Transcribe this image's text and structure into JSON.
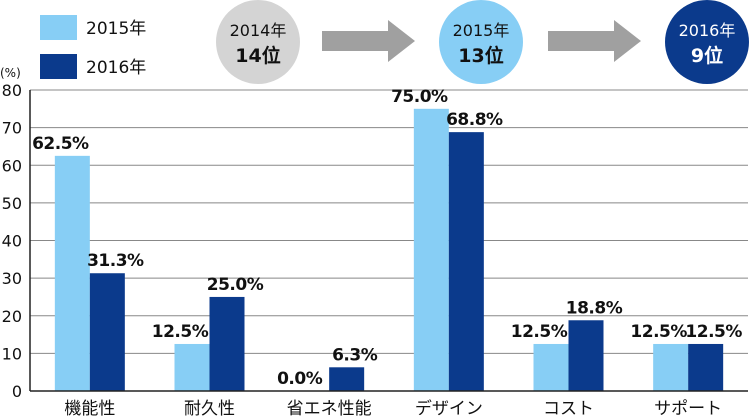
{
  "chart_data": {
    "type": "bar",
    "categories": [
      "機能性",
      "耐久性",
      "省エネ性能",
      "デザイン",
      "コスト",
      "サポート"
    ],
    "series": [
      {
        "name": "2015年",
        "values": [
          62.5,
          12.5,
          0.0,
          75.0,
          12.5,
          12.5
        ],
        "color": "#87CEF5"
      },
      {
        "name": "2016年",
        "values": [
          31.3,
          25.0,
          6.3,
          68.8,
          18.8,
          12.5
        ],
        "color": "#0B3A8C"
      }
    ],
    "value_labels": {
      "2015年": [
        "62.5%",
        "12.5%",
        "0.0%",
        "75.0%",
        "12.5%",
        "12.5%"
      ],
      "2016年": [
        "31.3%",
        "25.0%",
        "6.3%",
        "68.8%",
        "18.8%",
        "12.5%"
      ]
    },
    "yticks": [
      "0",
      "10",
      "20",
      "30",
      "40",
      "50",
      "60",
      "70",
      "80"
    ],
    "ylim": [
      0,
      80
    ],
    "ylabel": "(%)",
    "grid": true,
    "legend": "top-left"
  },
  "ranking": [
    {
      "year": "2014年",
      "rank": "14位",
      "fill": "#D4D4D4",
      "text_color": "#111111"
    },
    {
      "year": "2015年",
      "rank": "13位",
      "fill": "#87CEF5",
      "text_color": "#111111"
    },
    {
      "year": "2016年",
      "rank": "9位",
      "fill": "#0B3A8C",
      "text_color": "#ffffff"
    }
  ],
  "colors": {
    "arrow": "#A0A0A0",
    "grid": "#888888",
    "axis": "#222222"
  }
}
